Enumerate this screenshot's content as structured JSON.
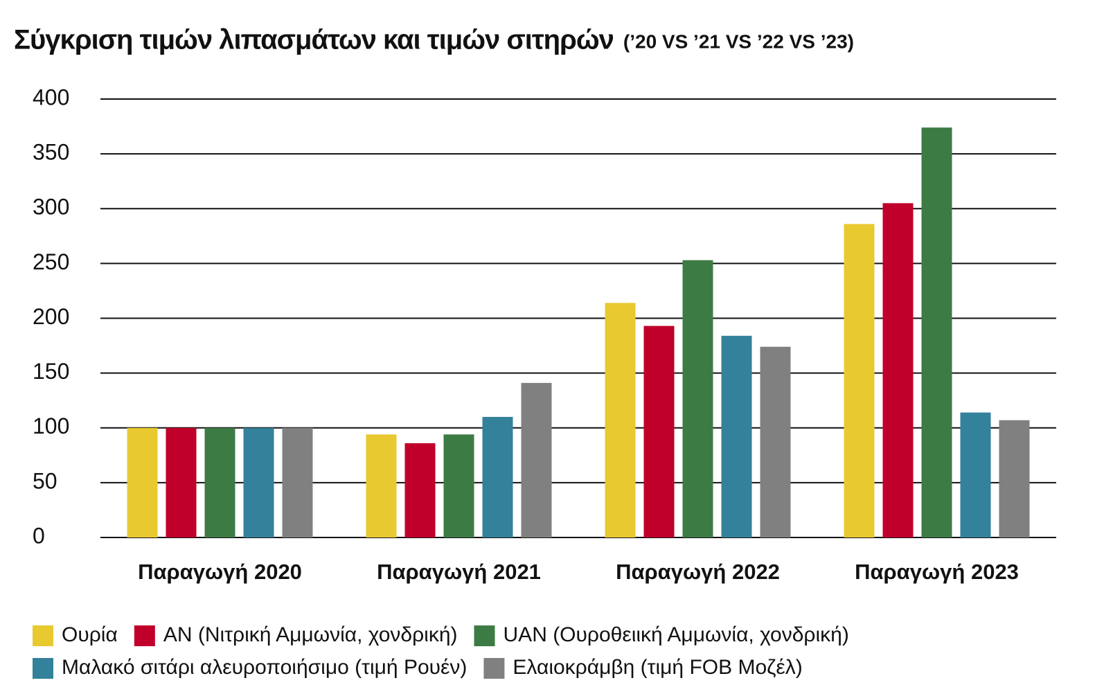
{
  "chart_data": {
    "type": "bar",
    "title": "Σύγκριση τιμών λιπασμάτων και τιμών σιτηρών",
    "subtitle": "(’20 VS ’21 VS ’22 VS ’23)",
    "categories": [
      "Παραγωγή 2020",
      "Παραγωγή 2021",
      "Παραγωγή 2022",
      "Παραγωγή 2023"
    ],
    "series": [
      {
        "name": "Ουρία",
        "color": "#e8c930",
        "values": [
          100,
          94,
          214,
          286
        ]
      },
      {
        "name": "AN (Νιτρική Αμμωνία, χονδρική)",
        "color": "#c0002a",
        "values": [
          100,
          86,
          193,
          305
        ]
      },
      {
        "name": "UAN (Ουροθειική Αμμωνία, χονδρική)",
        "color": "#3d7b45",
        "values": [
          100,
          94,
          253,
          374
        ]
      },
      {
        "name": "Μαλακό σιτάρι αλευροποιήσιμο (τιμή Ρουέν)",
        "color": "#33819a",
        "values": [
          100,
          110,
          184,
          114
        ]
      },
      {
        "name": "Ελαιοκράμβη (τιμή FOB Μοζέλ)",
        "color": "#808080",
        "values": [
          100,
          141,
          174,
          107
        ]
      }
    ],
    "ylim": [
      0,
      400
    ],
    "yticks": [
      0,
      50,
      100,
      150,
      200,
      250,
      300,
      350,
      400
    ],
    "grid": true
  }
}
